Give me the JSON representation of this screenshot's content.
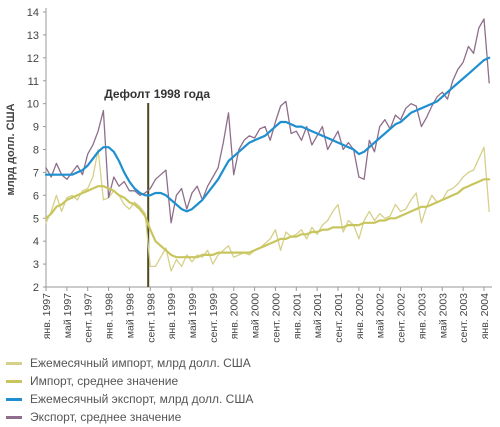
{
  "colors": {
    "import_monthly": "#d6d08a",
    "import_avg": "#c9c55e",
    "export_monthly": "#8e6e8a",
    "export_avg": "#1f8fd0",
    "event_line": "#4a4a1e",
    "grid": "#dddddd",
    "axis": "#999999"
  },
  "chart_data": {
    "type": "line",
    "title": "",
    "ylabel": "млрд долл. США",
    "xlabel": "",
    "ylim": [
      2,
      14
    ],
    "yticks": [
      2,
      3,
      4,
      5,
      6,
      7,
      8,
      9,
      10,
      11,
      12,
      13,
      14
    ],
    "xlim": [
      "1997-01",
      "2004-01"
    ],
    "grid": false,
    "legend_position": "bottom",
    "x_ticks": [
      {
        "x": "1997-01",
        "label": "янв. 1997"
      },
      {
        "x": "1997-05",
        "label": "май 1997"
      },
      {
        "x": "1997-09",
        "label": "сент. 1997"
      },
      {
        "x": "1998-01",
        "label": "янв. 1998"
      },
      {
        "x": "1998-05",
        "label": "май 1998"
      },
      {
        "x": "1998-09",
        "label": "сент. 1998"
      },
      {
        "x": "1999-01",
        "label": "янв. 1999"
      },
      {
        "x": "1999-05",
        "label": "май 1999"
      },
      {
        "x": "1999-09",
        "label": "сент. 1999"
      },
      {
        "x": "2000-01",
        "label": "янв. 2000"
      },
      {
        "x": "2000-05",
        "label": "май 2000"
      },
      {
        "x": "2000-09",
        "label": "сент. 2000"
      },
      {
        "x": "2001-01",
        "label": "янв. 2001"
      },
      {
        "x": "2001-05",
        "label": "май 2001"
      },
      {
        "x": "2001-09",
        "label": "сент. 2001"
      },
      {
        "x": "2002-01",
        "label": "янв. 2002"
      },
      {
        "x": "2002-05",
        "label": "май 2002"
      },
      {
        "x": "2002-09",
        "label": "сент. 2002"
      },
      {
        "x": "2003-01",
        "label": "янв. 2003"
      },
      {
        "x": "2003-05",
        "label": "май 2003"
      },
      {
        "x": "2003-09",
        "label": "сент. 2003"
      },
      {
        "x": "2004-01",
        "label": "янв. 2004"
      }
    ],
    "annotation": {
      "x": "1998-08",
      "text": "Дефолт 1998 года"
    },
    "x": [
      "1997-01",
      "1997-02",
      "1997-03",
      "1997-04",
      "1997-05",
      "1997-06",
      "1997-07",
      "1997-08",
      "1997-09",
      "1997-10",
      "1997-11",
      "1997-12",
      "1998-01",
      "1998-02",
      "1998-03",
      "1998-04",
      "1998-05",
      "1998-06",
      "1998-07",
      "1998-08",
      "1998-09",
      "1998-10",
      "1998-11",
      "1998-12",
      "1999-01",
      "1999-02",
      "1999-03",
      "1999-04",
      "1999-05",
      "1999-06",
      "1999-07",
      "1999-08",
      "1999-09",
      "1999-10",
      "1999-11",
      "1999-12",
      "2000-01",
      "2000-02",
      "2000-03",
      "2000-04",
      "2000-05",
      "2000-06",
      "2000-07",
      "2000-08",
      "2000-09",
      "2000-10",
      "2000-11",
      "2000-12",
      "2001-01",
      "2001-02",
      "2001-03",
      "2001-04",
      "2001-05",
      "2001-06",
      "2001-07",
      "2001-08",
      "2001-09",
      "2001-10",
      "2001-11",
      "2001-12",
      "2002-01",
      "2002-02",
      "2002-03",
      "2002-04",
      "2002-05",
      "2002-06",
      "2002-07",
      "2002-08",
      "2002-09",
      "2002-10",
      "2002-11",
      "2002-12",
      "2003-01",
      "2003-02",
      "2003-03",
      "2003-04",
      "2003-05",
      "2003-06",
      "2003-07",
      "2003-08",
      "2003-09",
      "2003-10",
      "2003-11",
      "2003-12",
      "2004-01",
      "2004-02"
    ],
    "series": [
      {
        "name": "Ежемесячный импорт, млрд долл. США",
        "color_key": "import_monthly",
        "width": 1.3,
        "values": [
          4.8,
          5.3,
          6.0,
          5.3,
          5.9,
          6.0,
          5.8,
          6.2,
          6.3,
          6.8,
          8.0,
          5.8,
          5.9,
          6.2,
          6.0,
          5.6,
          5.4,
          5.7,
          5.5,
          5.2,
          2.9,
          2.9,
          3.3,
          3.7,
          2.7,
          3.2,
          2.9,
          3.4,
          3.1,
          3.4,
          3.3,
          3.6,
          3.0,
          3.4,
          3.6,
          3.8,
          3.3,
          3.4,
          3.5,
          3.4,
          3.6,
          3.7,
          3.9,
          4.1,
          4.5,
          3.6,
          4.4,
          4.2,
          4.3,
          4.5,
          4.1,
          4.6,
          4.3,
          4.7,
          4.9,
          5.3,
          5.6,
          4.4,
          4.9,
          4.7,
          4.1,
          4.9,
          5.3,
          4.9,
          5.2,
          5.0,
          5.1,
          5.6,
          5.3,
          5.4,
          5.8,
          6.1,
          4.8,
          5.5,
          6.0,
          5.7,
          5.8,
          6.2,
          6.3,
          6.5,
          6.8,
          7.0,
          7.1,
          7.6,
          8.1,
          5.3
        ]
      },
      {
        "name": "Импорт, среднее значение",
        "color_key": "import_avg",
        "width": 2.2,
        "values": [
          5.0,
          5.2,
          5.5,
          5.6,
          5.8,
          5.9,
          6.0,
          6.1,
          6.2,
          6.3,
          6.4,
          6.4,
          6.3,
          6.2,
          6.0,
          5.9,
          5.7,
          5.6,
          5.4,
          5.1,
          4.5,
          4.0,
          3.8,
          3.6,
          3.4,
          3.3,
          3.3,
          3.3,
          3.3,
          3.3,
          3.4,
          3.4,
          3.4,
          3.5,
          3.5,
          3.5,
          3.5,
          3.5,
          3.5,
          3.5,
          3.6,
          3.7,
          3.8,
          3.9,
          4.0,
          4.1,
          4.1,
          4.2,
          4.2,
          4.3,
          4.3,
          4.4,
          4.4,
          4.5,
          4.5,
          4.6,
          4.6,
          4.6,
          4.7,
          4.7,
          4.7,
          4.8,
          4.8,
          4.8,
          4.9,
          4.9,
          5.0,
          5.0,
          5.1,
          5.2,
          5.3,
          5.4,
          5.5,
          5.5,
          5.6,
          5.7,
          5.8,
          5.9,
          6.0,
          6.1,
          6.3,
          6.4,
          6.5,
          6.6,
          6.7,
          6.7
        ]
      },
      {
        "name": "Ежемесячный экспорт, млрд долл. США",
        "color_key": "export_monthly",
        "width": 1.3,
        "values": [
          7.2,
          6.8,
          7.4,
          6.9,
          6.7,
          7.0,
          7.3,
          6.9,
          7.8,
          8.2,
          8.8,
          9.7,
          5.9,
          6.8,
          6.4,
          6.6,
          6.2,
          6.2,
          6.0,
          6.1,
          6.3,
          6.7,
          6.9,
          7.1,
          4.8,
          6.0,
          6.3,
          5.4,
          6.1,
          6.4,
          5.8,
          6.4,
          6.8,
          7.2,
          8.3,
          9.6,
          6.9,
          8.0,
          8.4,
          8.6,
          8.5,
          8.9,
          9.0,
          8.4,
          9.2,
          9.9,
          10.1,
          8.7,
          8.8,
          8.4,
          9.0,
          8.2,
          8.6,
          9.0,
          8.0,
          8.4,
          8.8,
          8.0,
          8.3,
          8.0,
          6.8,
          6.7,
          8.4,
          7.9,
          9.0,
          9.3,
          8.9,
          9.5,
          9.3,
          9.8,
          10.0,
          9.9,
          9.0,
          9.4,
          9.9,
          10.3,
          10.5,
          10.2,
          11.0,
          11.5,
          11.8,
          12.5,
          12.2,
          13.3,
          13.7,
          10.9
        ]
      },
      {
        "name": "Экспорт, среднее значение",
        "color_key": "export_avg",
        "width": 2.2,
        "values": [
          6.9,
          6.9,
          6.9,
          6.9,
          6.9,
          6.9,
          7.0,
          7.1,
          7.3,
          7.6,
          7.9,
          8.1,
          8.1,
          7.9,
          7.5,
          7.0,
          6.6,
          6.3,
          6.1,
          6.0,
          6.0,
          6.1,
          6.1,
          6.0,
          5.8,
          5.6,
          5.4,
          5.3,
          5.4,
          5.6,
          5.8,
          6.1,
          6.4,
          6.7,
          7.1,
          7.5,
          7.7,
          7.9,
          8.1,
          8.3,
          8.4,
          8.5,
          8.6,
          8.8,
          9.0,
          9.2,
          9.2,
          9.1,
          9.0,
          9.0,
          8.9,
          8.8,
          8.7,
          8.6,
          8.5,
          8.4,
          8.3,
          8.2,
          8.1,
          8.0,
          7.8,
          7.9,
          8.1,
          8.3,
          8.5,
          8.7,
          8.9,
          9.1,
          9.2,
          9.4,
          9.6,
          9.7,
          9.8,
          9.9,
          10.0,
          10.1,
          10.3,
          10.5,
          10.7,
          10.9,
          11.1,
          11.3,
          11.5,
          11.7,
          11.9,
          12.0
        ]
      }
    ]
  }
}
